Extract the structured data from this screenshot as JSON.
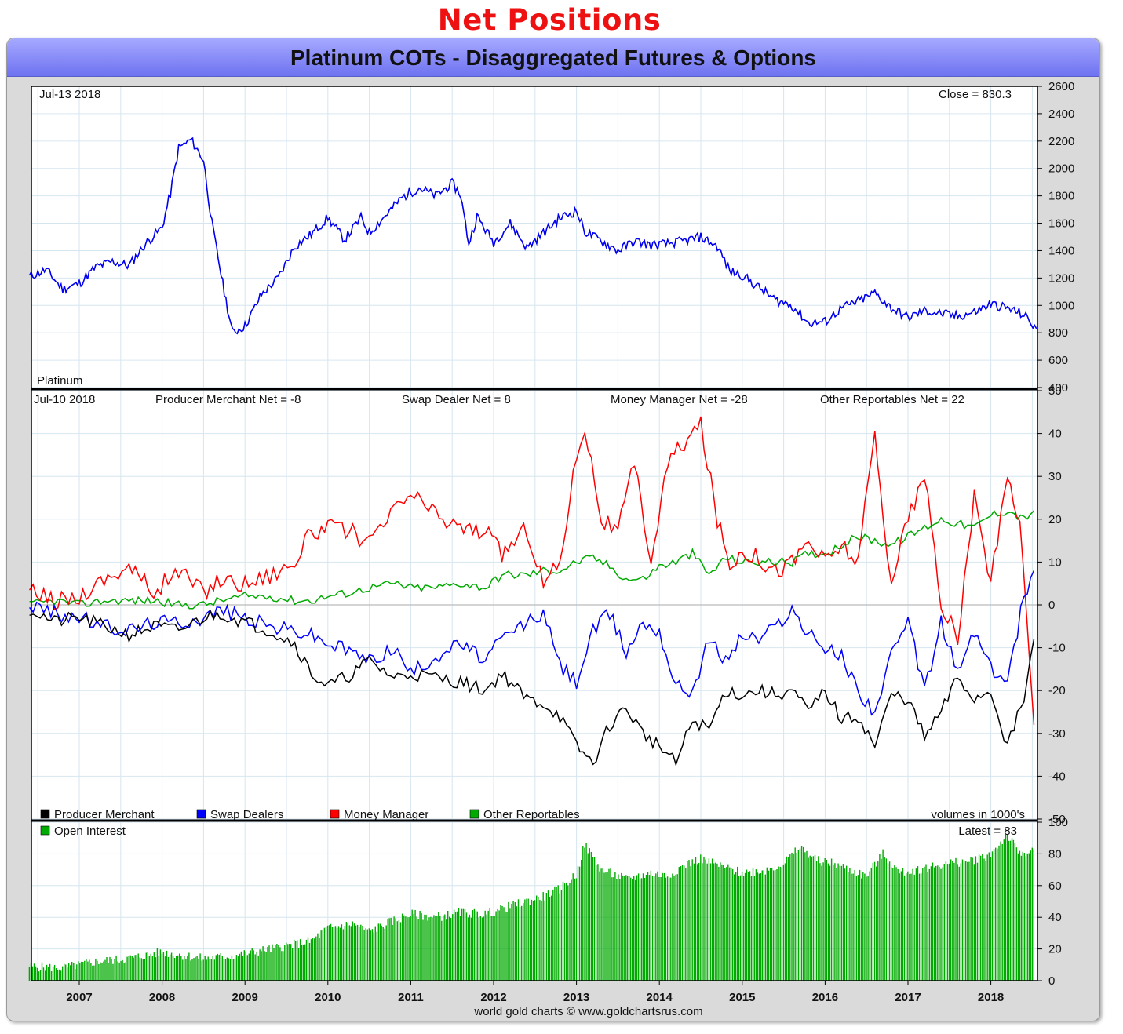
{
  "heading": "Net Positions",
  "frame_title": "Platinum COTs - Disaggregated Futures & Options",
  "credit": "world gold charts © www.goldchartsrus.com",
  "colors": {
    "price": "#0000ee",
    "producer_merchant": "#000000",
    "swap_dealers": "#0000ff",
    "money_manager": "#ff0000",
    "other_reportables": "#00aa00",
    "open_interest": "#00aa00",
    "heading": "#ee1111",
    "title_bar": "#8c8ff7"
  },
  "chart_data": [
    {
      "type": "line",
      "panel": "price",
      "date_label": "Jul-13  2018",
      "close_label": "Close = 830.3",
      "series_label": "Platinum",
      "ylim": [
        400,
        2600
      ],
      "yticks": [
        400,
        600,
        800,
        1000,
        1200,
        1400,
        1600,
        1800,
        2000,
        2200,
        2400,
        2600
      ],
      "grid": true,
      "series": [
        {
          "name": "Platinum",
          "x": [
            2006.4,
            2006.6,
            2006.8,
            2007.0,
            2007.2,
            2007.4,
            2007.6,
            2007.8,
            2008.0,
            2008.1,
            2008.2,
            2008.35,
            2008.5,
            2008.6,
            2008.75,
            2008.85,
            2009.0,
            2009.2,
            2009.4,
            2009.6,
            2009.8,
            2010.0,
            2010.2,
            2010.4,
            2010.5,
            2010.7,
            2010.9,
            2011.1,
            2011.3,
            2011.5,
            2011.6,
            2011.7,
            2011.8,
            2012.0,
            2012.2,
            2012.4,
            2012.6,
            2012.8,
            2013.0,
            2013.1,
            2013.3,
            2013.5,
            2013.7,
            2013.9,
            2014.1,
            2014.3,
            2014.5,
            2014.7,
            2014.85,
            2015.0,
            2015.2,
            2015.4,
            2015.6,
            2015.8,
            2016.0,
            2016.2,
            2016.4,
            2016.6,
            2016.8,
            2017.0,
            2017.2,
            2017.4,
            2017.6,
            2017.8,
            2018.0,
            2018.2,
            2018.4,
            2018.55
          ],
          "values": [
            1210,
            1260,
            1120,
            1160,
            1280,
            1320,
            1290,
            1450,
            1570,
            1820,
            2150,
            2210,
            2060,
            1600,
            1100,
            800,
            850,
            1080,
            1200,
            1430,
            1520,
            1640,
            1480,
            1640,
            1530,
            1660,
            1790,
            1860,
            1800,
            1890,
            1810,
            1450,
            1650,
            1460,
            1600,
            1420,
            1530,
            1640,
            1690,
            1540,
            1470,
            1400,
            1470,
            1440,
            1450,
            1470,
            1500,
            1430,
            1250,
            1220,
            1130,
            1040,
            1000,
            870,
            880,
            980,
            1030,
            1090,
            980,
            910,
            960,
            940,
            920,
            950,
            1010,
            980,
            930,
            830
          ]
        }
      ]
    },
    {
      "type": "line",
      "panel": "net_positions",
      "date_label": "Jul-10  2018",
      "ylim": [
        -50,
        50
      ],
      "yticks": [
        -50,
        -40,
        -30,
        -20,
        -10,
        0,
        10,
        20,
        30,
        40,
        50
      ],
      "grid": true,
      "legend_position": "bottom-left",
      "units_note": "volumes in 1000's",
      "header_labels": [
        "Producer Merchant Net = -8",
        "Swap Dealer Net = 8",
        "Money Manager Net = -28",
        "Other Reportables Net = 22"
      ],
      "series": [
        {
          "name": "Producer Merchant",
          "x": [
            2006.4,
            2006.7,
            2007.0,
            2007.3,
            2007.6,
            2007.9,
            2008.2,
            2008.5,
            2008.7,
            2009.0,
            2009.3,
            2009.6,
            2009.8,
            2010.0,
            2010.3,
            2010.5,
            2010.8,
            2011.0,
            2011.3,
            2011.6,
            2011.9,
            2012.1,
            2012.4,
            2012.6,
            2012.8,
            2013.0,
            2013.2,
            2013.4,
            2013.6,
            2013.8,
            2014.0,
            2014.2,
            2014.4,
            2014.6,
            2014.8,
            2015.0,
            2015.2,
            2015.4,
            2015.6,
            2015.8,
            2016.0,
            2016.2,
            2016.4,
            2016.6,
            2016.8,
            2017.0,
            2017.2,
            2017.4,
            2017.6,
            2017.8,
            2018.0,
            2018.2,
            2018.4,
            2018.52
          ],
          "values": [
            -1,
            -4,
            -3,
            -5,
            -7,
            -5,
            -6,
            -3,
            -2,
            -4,
            -6,
            -9,
            -16,
            -19,
            -16,
            -13,
            -17,
            -16,
            -17,
            -18,
            -20,
            -16,
            -22,
            -23,
            -26,
            -33,
            -37,
            -28,
            -24,
            -30,
            -33,
            -37,
            -27,
            -29,
            -20,
            -21,
            -20,
            -21,
            -20,
            -25,
            -20,
            -27,
            -26,
            -33,
            -21,
            -22,
            -31,
            -25,
            -17,
            -22,
            -20,
            -33,
            -22,
            -8
          ]
        },
        {
          "name": "Swap Dealers",
          "x": [
            2006.4,
            2006.7,
            2007.0,
            2007.3,
            2007.6,
            2007.9,
            2008.2,
            2008.5,
            2008.7,
            2009.0,
            2009.3,
            2009.6,
            2009.8,
            2010.0,
            2010.3,
            2010.5,
            2010.8,
            2011.0,
            2011.3,
            2011.6,
            2011.9,
            2012.1,
            2012.4,
            2012.6,
            2012.8,
            2013.0,
            2013.2,
            2013.4,
            2013.6,
            2013.8,
            2014.0,
            2014.2,
            2014.4,
            2014.6,
            2014.8,
            2015.0,
            2015.2,
            2015.4,
            2015.6,
            2015.8,
            2016.0,
            2016.2,
            2016.4,
            2016.6,
            2016.8,
            2017.0,
            2017.2,
            2017.4,
            2017.6,
            2017.8,
            2018.0,
            2018.2,
            2018.4,
            2018.52
          ],
          "values": [
            0,
            -2,
            -3,
            -5,
            -6,
            -4,
            -4,
            -3,
            -1,
            -3,
            -5,
            -6,
            -7,
            -9,
            -11,
            -13,
            -10,
            -16,
            -12,
            -9,
            -13,
            -8,
            -4,
            -2,
            -14,
            -18,
            -6,
            -2,
            -11,
            -4,
            -6,
            -19,
            -20,
            -8,
            -13,
            -7,
            -8,
            -5,
            -1,
            -7,
            -10,
            -12,
            -20,
            -25,
            -12,
            -4,
            -20,
            -4,
            -16,
            -6,
            -15,
            -18,
            2,
            8
          ]
        },
        {
          "name": "Money Manager",
          "x": [
            2006.4,
            2006.7,
            2007.0,
            2007.3,
            2007.6,
            2007.9,
            2008.2,
            2008.5,
            2008.7,
            2009.0,
            2009.3,
            2009.6,
            2009.8,
            2010.0,
            2010.3,
            2010.5,
            2010.8,
            2011.0,
            2011.3,
            2011.6,
            2011.9,
            2012.1,
            2012.4,
            2012.6,
            2012.8,
            2013.0,
            2013.1,
            2013.3,
            2013.5,
            2013.7,
            2013.9,
            2014.1,
            2014.3,
            2014.5,
            2014.7,
            2014.85,
            2015.0,
            2015.2,
            2015.4,
            2015.6,
            2015.8,
            2016.0,
            2016.2,
            2016.4,
            2016.6,
            2016.7,
            2016.8,
            2017.0,
            2017.2,
            2017.4,
            2017.6,
            2017.8,
            2018.0,
            2018.2,
            2018.35,
            2018.52
          ],
          "values": [
            3,
            1,
            2,
            6,
            9,
            3,
            8,
            3,
            6,
            5,
            7,
            10,
            17,
            18,
            17,
            14,
            22,
            26,
            21,
            18,
            17,
            12,
            18,
            5,
            10,
            35,
            42,
            20,
            17,
            33,
            10,
            33,
            38,
            42,
            20,
            9,
            13,
            11,
            8,
            10,
            15,
            10,
            14,
            10,
            40,
            20,
            6,
            20,
            30,
            0,
            -8,
            25,
            5,
            30,
            20,
            -28
          ]
        },
        {
          "name": "Other Reportables",
          "x": [
            2006.4,
            2006.7,
            2007.0,
            2007.3,
            2007.6,
            2007.9,
            2008.2,
            2008.5,
            2008.7,
            2009.0,
            2009.3,
            2009.6,
            2009.8,
            2010.0,
            2010.3,
            2010.5,
            2010.8,
            2011.0,
            2011.3,
            2011.6,
            2011.9,
            2012.1,
            2012.4,
            2012.6,
            2012.8,
            2013.0,
            2013.2,
            2013.4,
            2013.6,
            2013.8,
            2014.0,
            2014.2,
            2014.4,
            2014.6,
            2014.8,
            2015.0,
            2015.2,
            2015.4,
            2015.6,
            2015.8,
            2016.0,
            2016.2,
            2016.4,
            2016.6,
            2016.8,
            2017.0,
            2017.2,
            2017.4,
            2017.6,
            2017.8,
            2018.0,
            2018.2,
            2018.4,
            2018.52
          ],
          "values": [
            0,
            1,
            0,
            1,
            1,
            1,
            0,
            0,
            1,
            2,
            2,
            1,
            1,
            2,
            3,
            4,
            5,
            4,
            4,
            5,
            4,
            7,
            7,
            8,
            8,
            10,
            11,
            9,
            6,
            6,
            9,
            10,
            12,
            7,
            11,
            10,
            10,
            10,
            10,
            12,
            12,
            14,
            16,
            15,
            14,
            16,
            18,
            20,
            19,
            18,
            21,
            22,
            20,
            22
          ]
        }
      ]
    },
    {
      "type": "bar",
      "panel": "open_interest",
      "latest_label": "Latest = 83",
      "ylim": [
        0,
        100
      ],
      "yticks": [
        0,
        20,
        40,
        60,
        80,
        100
      ],
      "grid": true,
      "series": [
        {
          "name": "Open Interest",
          "x": [
            2006.4,
            2006.8,
            2007.2,
            2007.6,
            2008.0,
            2008.5,
            2008.9,
            2009.2,
            2009.5,
            2009.8,
            2010.0,
            2010.3,
            2010.5,
            2010.8,
            2011.0,
            2011.3,
            2011.6,
            2011.9,
            2012.2,
            2012.4,
            2012.6,
            2012.8,
            2013.0,
            2013.1,
            2013.3,
            2013.6,
            2013.9,
            2014.1,
            2014.3,
            2014.5,
            2014.7,
            2015.0,
            2015.3,
            2015.5,
            2015.7,
            2015.9,
            2016.1,
            2016.3,
            2016.5,
            2016.7,
            2016.9,
            2017.1,
            2017.3,
            2017.5,
            2017.7,
            2017.9,
            2018.0,
            2018.2,
            2018.35,
            2018.52
          ],
          "values": [
            9,
            8,
            12,
            14,
            18,
            14,
            16,
            19,
            22,
            25,
            33,
            36,
            31,
            38,
            42,
            40,
            43,
            42,
            47,
            50,
            53,
            58,
            67,
            86,
            70,
            64,
            68,
            66,
            73,
            77,
            73,
            68,
            70,
            74,
            84,
            76,
            74,
            70,
            66,
            80,
            68,
            70,
            72,
            74,
            75,
            78,
            80,
            92,
            80,
            83
          ]
        }
      ]
    }
  ],
  "legend": [
    {
      "label": "Producer Merchant",
      "color": "#000000"
    },
    {
      "label": "Swap Dealers",
      "color": "#0000ff"
    },
    {
      "label": "Money Manager",
      "color": "#ff0000"
    },
    {
      "label": "Other Reportables",
      "color": "#00aa00"
    }
  ],
  "oi_legend": {
    "label": "Open Interest",
    "color": "#00aa00"
  },
  "x_axis": {
    "years": [
      "2007",
      "2008",
      "2009",
      "2010",
      "2011",
      "2012",
      "2013",
      "2014",
      "2015",
      "2016",
      "2017",
      "2018"
    ]
  }
}
